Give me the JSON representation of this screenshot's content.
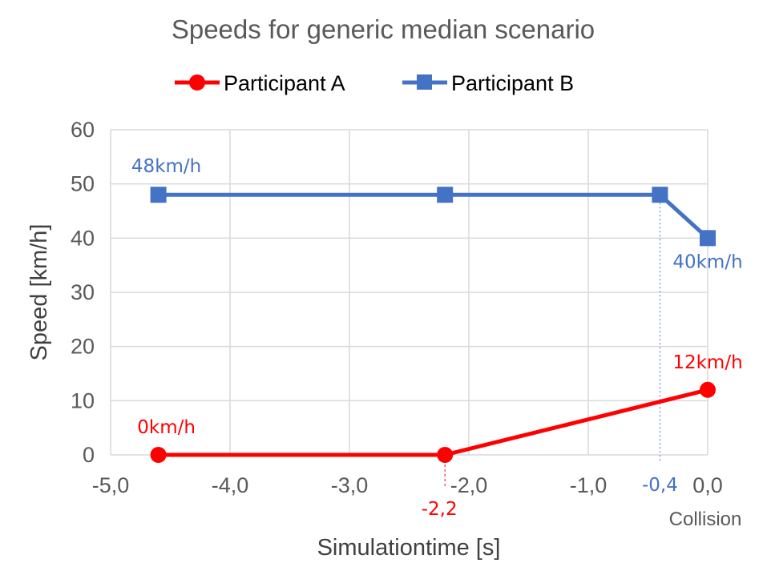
{
  "chart_data": {
    "type": "line",
    "title": "Speeds for generic median scenario",
    "xlabel": "Simulationtime [s]",
    "ylabel": "Speed [km/h]",
    "xlim": [
      -5.0,
      0.0
    ],
    "ylim": [
      0,
      60
    ],
    "x_ticks": [
      "-5,0",
      "-4,0",
      "-3,0",
      "-2,0",
      "-1,0",
      "0,0"
    ],
    "y_ticks": [
      "0",
      "10",
      "20",
      "30",
      "40",
      "50",
      "60"
    ],
    "grid": true,
    "legend_position": "top",
    "series": [
      {
        "name": "Participant A",
        "color": "#ff0000",
        "marker": "circle",
        "x": [
          -4.6,
          -2.2,
          0.0
        ],
        "y": [
          0,
          0,
          12
        ]
      },
      {
        "name": "Participant B",
        "color": "#4472c4",
        "marker": "square",
        "x": [
          -4.6,
          -2.2,
          -0.4,
          0.0
        ],
        "y": [
          48,
          48,
          48,
          40
        ]
      }
    ],
    "annotations": [
      {
        "text": "48km/h",
        "x": -4.6,
        "y": 48,
        "color": "#4472c4"
      },
      {
        "text": "40km/h",
        "x": 0.0,
        "y": 40,
        "color": "#4472c4"
      },
      {
        "text": "12km/h",
        "x": 0.0,
        "y": 12,
        "color": "#ff0000"
      },
      {
        "text": "0km/h",
        "x": -4.6,
        "y": 0,
        "color": "#ff0000"
      },
      {
        "text": "-2,2",
        "x": -2.2,
        "color": "#ff0000"
      },
      {
        "text": "-0,4",
        "x": -0.4,
        "color": "#4472c4"
      },
      {
        "text": "Collision",
        "x": 0.0,
        "color": "#c8c8c8"
      }
    ]
  }
}
